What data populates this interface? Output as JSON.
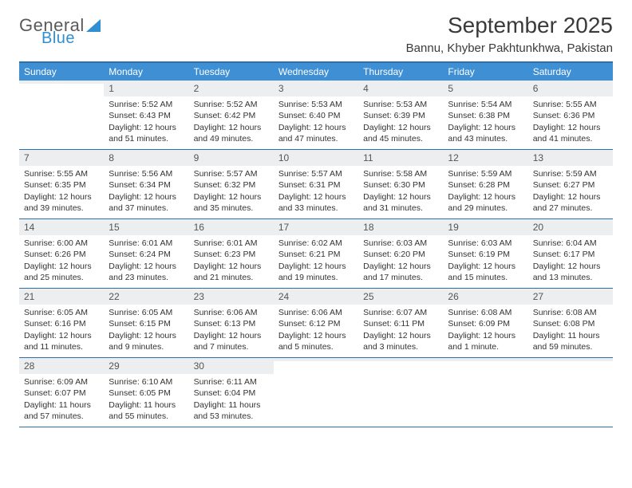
{
  "brand": {
    "general": "General",
    "blue": "Blue"
  },
  "title": "September 2025",
  "location": "Bannu, Khyber Pakhtunkhwa, Pakistan",
  "colors": {
    "header_bg": "#3f8fd4",
    "rule": "#2f6fa8",
    "daynum_bg": "#eceeef",
    "text": "#333333",
    "logo_blue": "#2f8fd2",
    "logo_grey": "#5a5a5a"
  },
  "dow": [
    "Sunday",
    "Monday",
    "Tuesday",
    "Wednesday",
    "Thursday",
    "Friday",
    "Saturday"
  ],
  "weeks": [
    [
      {
        "n": "",
        "sr": "",
        "ss": "",
        "dl": ""
      },
      {
        "n": "1",
        "sr": "Sunrise: 5:52 AM",
        "ss": "Sunset: 6:43 PM",
        "dl": "Daylight: 12 hours and 51 minutes."
      },
      {
        "n": "2",
        "sr": "Sunrise: 5:52 AM",
        "ss": "Sunset: 6:42 PM",
        "dl": "Daylight: 12 hours and 49 minutes."
      },
      {
        "n": "3",
        "sr": "Sunrise: 5:53 AM",
        "ss": "Sunset: 6:40 PM",
        "dl": "Daylight: 12 hours and 47 minutes."
      },
      {
        "n": "4",
        "sr": "Sunrise: 5:53 AM",
        "ss": "Sunset: 6:39 PM",
        "dl": "Daylight: 12 hours and 45 minutes."
      },
      {
        "n": "5",
        "sr": "Sunrise: 5:54 AM",
        "ss": "Sunset: 6:38 PM",
        "dl": "Daylight: 12 hours and 43 minutes."
      },
      {
        "n": "6",
        "sr": "Sunrise: 5:55 AM",
        "ss": "Sunset: 6:36 PM",
        "dl": "Daylight: 12 hours and 41 minutes."
      }
    ],
    [
      {
        "n": "7",
        "sr": "Sunrise: 5:55 AM",
        "ss": "Sunset: 6:35 PM",
        "dl": "Daylight: 12 hours and 39 minutes."
      },
      {
        "n": "8",
        "sr": "Sunrise: 5:56 AM",
        "ss": "Sunset: 6:34 PM",
        "dl": "Daylight: 12 hours and 37 minutes."
      },
      {
        "n": "9",
        "sr": "Sunrise: 5:57 AM",
        "ss": "Sunset: 6:32 PM",
        "dl": "Daylight: 12 hours and 35 minutes."
      },
      {
        "n": "10",
        "sr": "Sunrise: 5:57 AM",
        "ss": "Sunset: 6:31 PM",
        "dl": "Daylight: 12 hours and 33 minutes."
      },
      {
        "n": "11",
        "sr": "Sunrise: 5:58 AM",
        "ss": "Sunset: 6:30 PM",
        "dl": "Daylight: 12 hours and 31 minutes."
      },
      {
        "n": "12",
        "sr": "Sunrise: 5:59 AM",
        "ss": "Sunset: 6:28 PM",
        "dl": "Daylight: 12 hours and 29 minutes."
      },
      {
        "n": "13",
        "sr": "Sunrise: 5:59 AM",
        "ss": "Sunset: 6:27 PM",
        "dl": "Daylight: 12 hours and 27 minutes."
      }
    ],
    [
      {
        "n": "14",
        "sr": "Sunrise: 6:00 AM",
        "ss": "Sunset: 6:26 PM",
        "dl": "Daylight: 12 hours and 25 minutes."
      },
      {
        "n": "15",
        "sr": "Sunrise: 6:01 AM",
        "ss": "Sunset: 6:24 PM",
        "dl": "Daylight: 12 hours and 23 minutes."
      },
      {
        "n": "16",
        "sr": "Sunrise: 6:01 AM",
        "ss": "Sunset: 6:23 PM",
        "dl": "Daylight: 12 hours and 21 minutes."
      },
      {
        "n": "17",
        "sr": "Sunrise: 6:02 AM",
        "ss": "Sunset: 6:21 PM",
        "dl": "Daylight: 12 hours and 19 minutes."
      },
      {
        "n": "18",
        "sr": "Sunrise: 6:03 AM",
        "ss": "Sunset: 6:20 PM",
        "dl": "Daylight: 12 hours and 17 minutes."
      },
      {
        "n": "19",
        "sr": "Sunrise: 6:03 AM",
        "ss": "Sunset: 6:19 PM",
        "dl": "Daylight: 12 hours and 15 minutes."
      },
      {
        "n": "20",
        "sr": "Sunrise: 6:04 AM",
        "ss": "Sunset: 6:17 PM",
        "dl": "Daylight: 12 hours and 13 minutes."
      }
    ],
    [
      {
        "n": "21",
        "sr": "Sunrise: 6:05 AM",
        "ss": "Sunset: 6:16 PM",
        "dl": "Daylight: 12 hours and 11 minutes."
      },
      {
        "n": "22",
        "sr": "Sunrise: 6:05 AM",
        "ss": "Sunset: 6:15 PM",
        "dl": "Daylight: 12 hours and 9 minutes."
      },
      {
        "n": "23",
        "sr": "Sunrise: 6:06 AM",
        "ss": "Sunset: 6:13 PM",
        "dl": "Daylight: 12 hours and 7 minutes."
      },
      {
        "n": "24",
        "sr": "Sunrise: 6:06 AM",
        "ss": "Sunset: 6:12 PM",
        "dl": "Daylight: 12 hours and 5 minutes."
      },
      {
        "n": "25",
        "sr": "Sunrise: 6:07 AM",
        "ss": "Sunset: 6:11 PM",
        "dl": "Daylight: 12 hours and 3 minutes."
      },
      {
        "n": "26",
        "sr": "Sunrise: 6:08 AM",
        "ss": "Sunset: 6:09 PM",
        "dl": "Daylight: 12 hours and 1 minute."
      },
      {
        "n": "27",
        "sr": "Sunrise: 6:08 AM",
        "ss": "Sunset: 6:08 PM",
        "dl": "Daylight: 11 hours and 59 minutes."
      }
    ],
    [
      {
        "n": "28",
        "sr": "Sunrise: 6:09 AM",
        "ss": "Sunset: 6:07 PM",
        "dl": "Daylight: 11 hours and 57 minutes."
      },
      {
        "n": "29",
        "sr": "Sunrise: 6:10 AM",
        "ss": "Sunset: 6:05 PM",
        "dl": "Daylight: 11 hours and 55 minutes."
      },
      {
        "n": "30",
        "sr": "Sunrise: 6:11 AM",
        "ss": "Sunset: 6:04 PM",
        "dl": "Daylight: 11 hours and 53 minutes."
      },
      {
        "n": "",
        "sr": "",
        "ss": "",
        "dl": ""
      },
      {
        "n": "",
        "sr": "",
        "ss": "",
        "dl": ""
      },
      {
        "n": "",
        "sr": "",
        "ss": "",
        "dl": ""
      },
      {
        "n": "",
        "sr": "",
        "ss": "",
        "dl": ""
      }
    ]
  ]
}
